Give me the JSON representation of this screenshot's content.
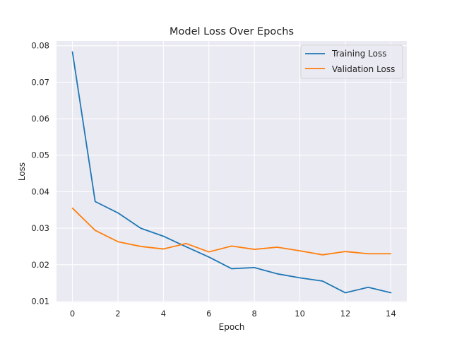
{
  "chart_data": {
    "type": "line",
    "title": "Model Loss Over Epochs",
    "xlabel": "Epoch",
    "ylabel": "Loss",
    "xlim": [
      -0.7,
      14.7
    ],
    "ylim": [
      0.0097,
      0.0813
    ],
    "xticks": [
      0,
      2,
      4,
      6,
      8,
      10,
      12,
      14
    ],
    "yticks": [
      0.01,
      0.02,
      0.03,
      0.04,
      0.05,
      0.06,
      0.07,
      0.08
    ],
    "ytick_labels": [
      "0.01",
      "0.02",
      "0.03",
      "0.04",
      "0.05",
      "0.06",
      "0.07",
      "0.08"
    ],
    "grid": true,
    "background": "#eaeaf2",
    "legend_position": "top-right",
    "x": [
      0,
      1,
      2,
      3,
      4,
      5,
      6,
      7,
      8,
      9,
      10,
      11,
      12,
      13,
      14
    ],
    "series": [
      {
        "name": "Training Loss",
        "color": "#1f77b4",
        "values": [
          0.0783,
          0.0373,
          0.0342,
          0.03,
          0.0278,
          0.0249,
          0.0221,
          0.0189,
          0.0192,
          0.0175,
          0.0164,
          0.0155,
          0.0123,
          0.0138,
          0.0123
        ]
      },
      {
        "name": "Validation Loss",
        "color": "#ff7f0e",
        "values": [
          0.0355,
          0.0294,
          0.0263,
          0.025,
          0.0243,
          0.0258,
          0.0235,
          0.0251,
          0.0242,
          0.0248,
          0.0238,
          0.0227,
          0.0236,
          0.023,
          0.023
        ]
      }
    ]
  }
}
